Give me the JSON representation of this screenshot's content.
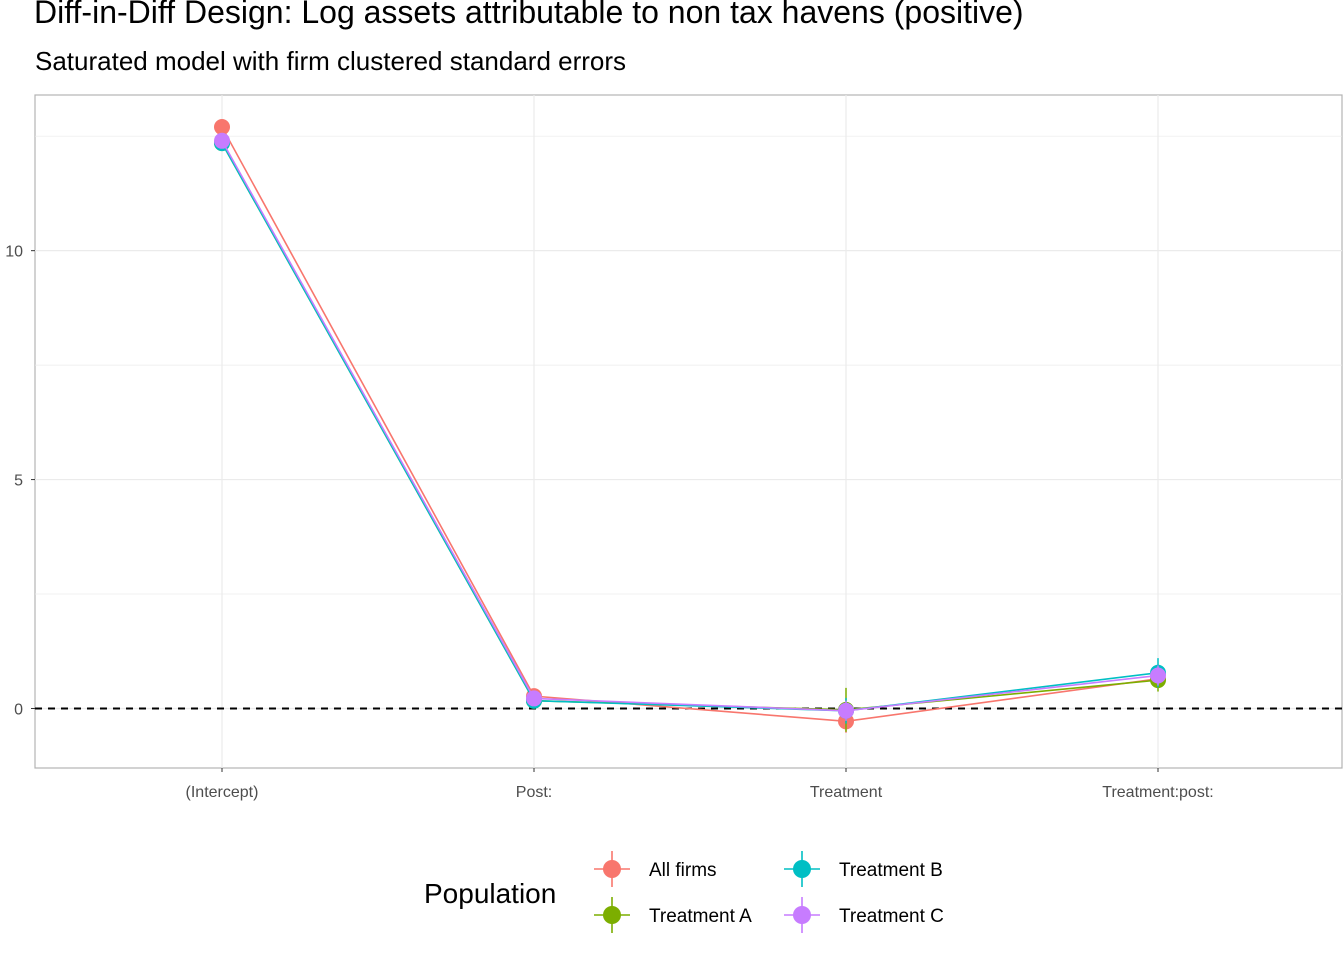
{
  "chart_data": {
    "type": "line",
    "title": "Diff-in-Diff Design: Log assets attributable to non tax havens (positive)",
    "subtitle": "Saturated model with firm clustered standard errors",
    "xlabel": "",
    "ylabel": "",
    "categories": [
      "(Intercept)",
      "Post:",
      "Treatment",
      "Treatment:post:"
    ],
    "ylim": [
      -1.3,
      13.4
    ],
    "y_ticks": [
      0,
      5,
      10
    ],
    "reference_line": {
      "y": 0,
      "style": "dashed",
      "color": "#000000"
    },
    "grid": true,
    "legend": {
      "title": "Population",
      "position": "bottom"
    },
    "series": [
      {
        "name": "All firms",
        "color": "#F8766D",
        "values": [
          12.7,
          0.27,
          -0.28,
          0.65
        ],
        "errors": [
          0.12,
          0.12,
          0.25,
          0.15
        ]
      },
      {
        "name": "Treatment A",
        "color": "#7CAE00",
        "values": [
          12.35,
          0.17,
          -0.03,
          0.62
        ],
        "errors": [
          0.1,
          0.1,
          0.48,
          0.25
        ]
      },
      {
        "name": "Treatment B",
        "color": "#00BFC4",
        "values": [
          12.35,
          0.17,
          -0.05,
          0.78
        ],
        "errors": [
          0.1,
          0.1,
          0.28,
          0.32
        ]
      },
      {
        "name": "Treatment C",
        "color": "#C77CFF",
        "values": [
          12.4,
          0.22,
          -0.05,
          0.72
        ],
        "errors": [
          0.1,
          0.1,
          0.22,
          0.22
        ]
      }
    ]
  }
}
